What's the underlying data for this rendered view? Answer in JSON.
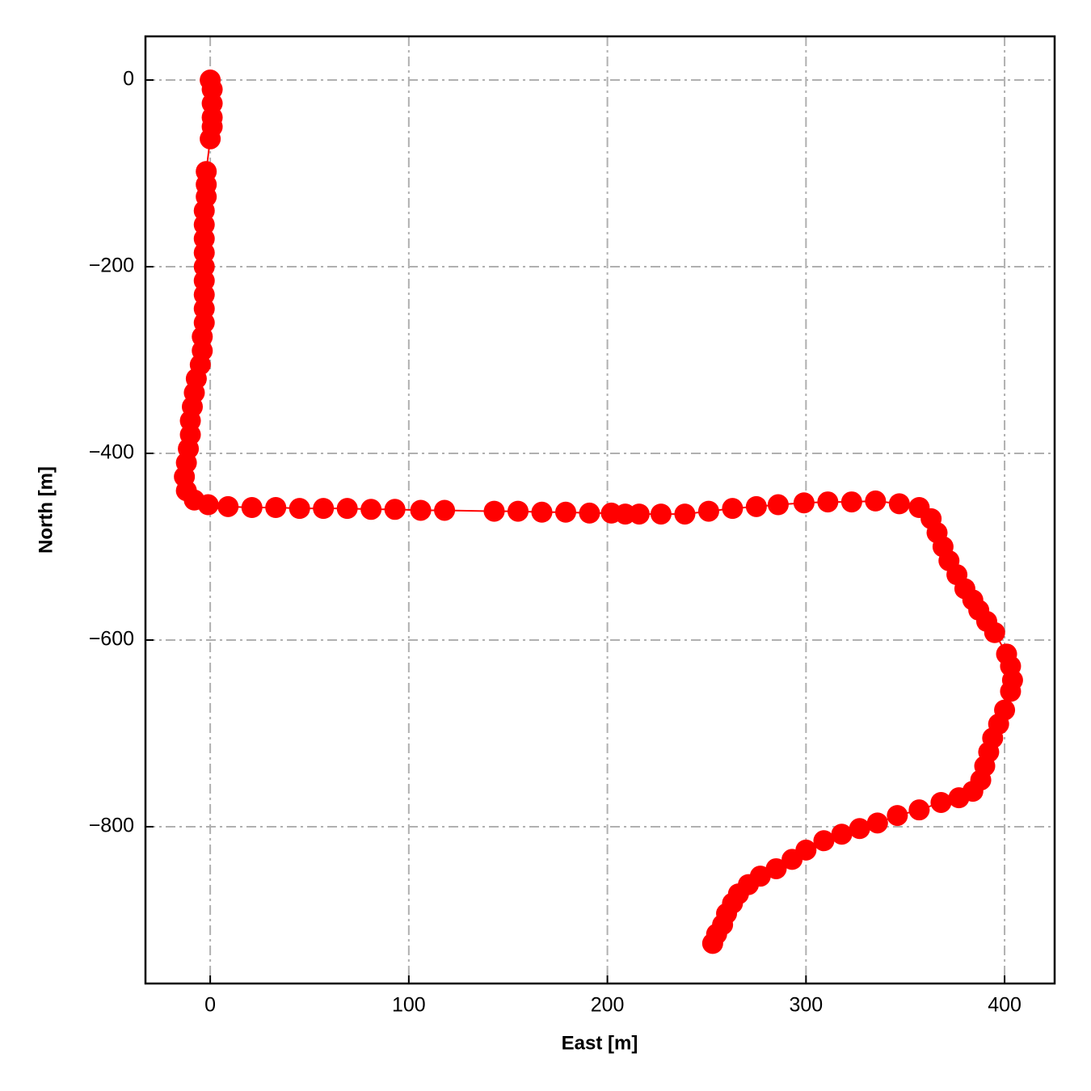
{
  "chart_data": {
    "type": "line",
    "xlabel": "East [m]",
    "ylabel": "North [m]",
    "color": "#ff0000",
    "marker": true,
    "grid": true,
    "xlim": [
      -32.6,
      425.2
    ],
    "ylim": [
      -968,
      46.8
    ],
    "xticks": [
      0,
      100,
      200,
      300,
      400
    ],
    "yticks": [
      {
        "value": -800,
        "label": "−800"
      },
      {
        "value": -600,
        "label": "−600"
      },
      {
        "value": -400,
        "label": "−400"
      },
      {
        "value": -200,
        "label": "−200"
      },
      0
    ],
    "x": [
      0,
      1,
      1,
      1,
      1,
      0,
      -2,
      -2,
      -2,
      -3,
      -3,
      -3,
      -3,
      -3,
      -3,
      -3,
      -3,
      -3,
      -4,
      -4,
      -5,
      -7,
      -8,
      -9,
      -10,
      -10,
      -11,
      -12,
      -13,
      -12,
      -8,
      -1,
      9,
      21,
      33,
      45,
      57,
      69,
      81,
      93,
      106,
      118,
      143,
      155,
      167,
      179,
      191,
      202,
      209,
      216,
      227,
      239,
      251,
      263,
      275,
      286,
      299,
      311,
      323,
      335,
      347,
      357,
      363,
      366,
      369,
      372,
      376,
      380,
      384,
      387,
      391,
      395,
      401,
      403,
      404,
      403,
      400,
      397,
      394,
      392,
      390,
      388,
      384,
      377,
      368,
      357,
      346,
      336,
      327,
      318,
      309,
      300,
      293,
      285,
      277,
      271,
      266,
      263,
      260,
      258,
      255,
      253
    ],
    "values": [
      0,
      -10,
      -25,
      -40,
      -50,
      -63,
      -98,
      -112,
      -125,
      -140,
      -155,
      -170,
      -185,
      -200,
      -215,
      -230,
      -245,
      -260,
      -275,
      -290,
      -305,
      -320,
      -335,
      -350,
      -365,
      -380,
      -395,
      -410,
      -425,
      -440,
      -450,
      -455,
      -457,
      -458,
      -458,
      -459,
      -459,
      -459,
      -460,
      -460,
      -461,
      -461,
      -462,
      -462,
      -463,
      -463,
      -464,
      -464,
      -465,
      -465,
      -465,
      -465,
      -462,
      -459,
      -457,
      -455,
      -453,
      -452,
      -452,
      -451,
      -454,
      -458,
      -470,
      -485,
      -500,
      -515,
      -530,
      -545,
      -557,
      -568,
      -580,
      -592,
      -615,
      -628,
      -643,
      -655,
      -675,
      -690,
      -705,
      -720,
      -735,
      -750,
      -762,
      -769,
      -774,
      -782,
      -788,
      -796,
      -802,
      -808,
      -815,
      -825,
      -835,
      -845,
      -853,
      -862,
      -872,
      -882,
      -893,
      -905,
      -915,
      -925
    ]
  }
}
